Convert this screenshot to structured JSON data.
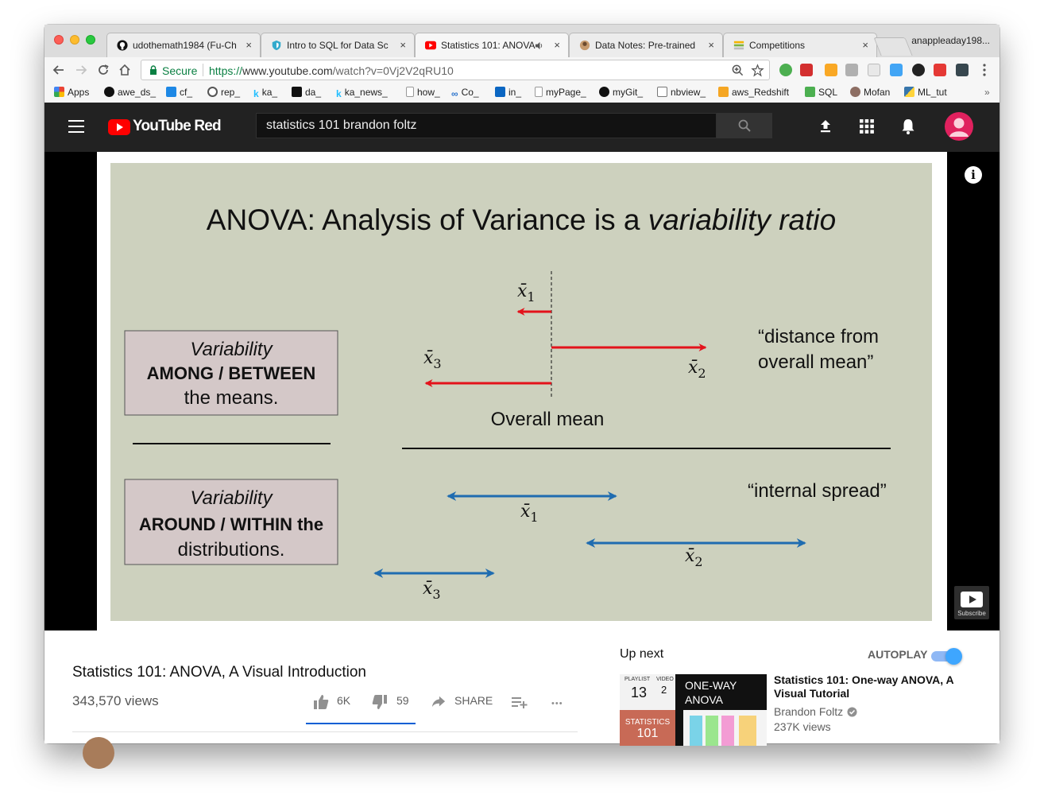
{
  "tabs": [
    {
      "title": "udothemath1984 (Fu-Ch",
      "close": "×"
    },
    {
      "title": "Intro to SQL for Data Sc",
      "close": "×"
    },
    {
      "title": "Statistics 101: ANOVA",
      "close": "×"
    },
    {
      "title": "Data Notes: Pre-trained",
      "close": "×"
    },
    {
      "title": "Competitions",
      "close": "×"
    }
  ],
  "profile_name": "anappleaday198...",
  "omnibox": {
    "secure_label": "Secure",
    "url_scheme": "https://",
    "url_host": "www.youtube.com",
    "url_path": "/watch?v=0Vj2V2qRU10"
  },
  "bookmarks": [
    "Apps",
    "awe_ds_",
    "cf_",
    "rep_",
    "ka_",
    "da_",
    "ka_news_",
    "how_",
    "Co_",
    "in_",
    "myPage_",
    "myGit_",
    "nbview_",
    "aws_Redshift",
    "SQL",
    "Mofan",
    "ML_tut"
  ],
  "bookmarks_more": "»",
  "youtube": {
    "logo_text": "YouTube Red",
    "search_value": "statistics 101 brandon foltz"
  },
  "slide": {
    "title_plain": "ANOVA: Analysis of Variance is a ",
    "title_italic": "variability ratio",
    "top_box": {
      "line1": "Variability",
      "line2": "AMONG / BETWEEN",
      "line3": "the means."
    },
    "bottom_box": {
      "line1": "Variability",
      "line2": "AROUND / WITHIN  the",
      "line3": "distributions."
    },
    "distance_label_1": "“distance from",
    "distance_label_2": "overall mean”",
    "overall_mean_label": "Overall mean",
    "internal_spread_label": "“internal spread”",
    "mean_symbol": "x̄",
    "sub_1": "1",
    "sub_2": "2",
    "sub_3": "3"
  },
  "player": {
    "info_glyph": "i",
    "subscribe_label": "Subscribe"
  },
  "video": {
    "title": "Statistics 101: ANOVA, A Visual Introduction",
    "views": "343,570 views",
    "likes": "6K",
    "dislikes": "59",
    "share_label": "SHARE",
    "more_glyph": "•••"
  },
  "sidebar": {
    "up_next_label": "Up next",
    "autoplay_label": "AUTOPLAY",
    "recommendation": {
      "title": "Statistics 101: One-way ANOVA, A Visual Tutorial",
      "channel": "Brandon Foltz",
      "views": "237K views",
      "thumb_heading_1": "ONE-WAY",
      "thumb_heading_2": "ANOVA",
      "thumb_playlist_label": "PLAYLIST",
      "thumb_playlist_num": "13",
      "thumb_video_label": "VIDEO",
      "thumb_video_num": "2",
      "thumb_series_1": "STATISTICS",
      "thumb_series_2": "101"
    }
  },
  "colors": {
    "youtube_red": "#ff0000",
    "slide_bg": "#cdd1be",
    "between_arrow": "#e3121b",
    "within_arrow": "#1f6cb0",
    "box_bg": "#d4c8c8",
    "accent_blue": "#065fd4"
  }
}
